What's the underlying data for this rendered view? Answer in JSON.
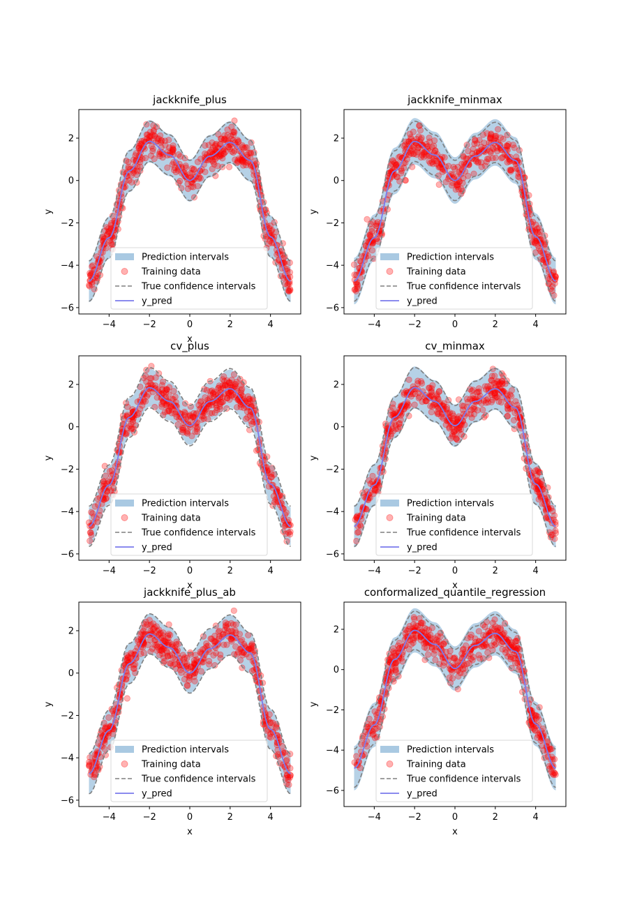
{
  "chart_data": [
    {
      "type": "scatter",
      "title": "jackknife_plus",
      "xlabel": "x",
      "ylabel": "y",
      "xlim": [
        -5.5,
        5.5
      ],
      "ylim": [
        -6.3,
        3.35
      ],
      "xticks": [
        -4,
        -2,
        0,
        2,
        4
      ],
      "yticks": [
        -6,
        -4,
        -2,
        0,
        2
      ],
      "grid": false,
      "legend_position": "lower-center",
      "legend": [
        "Prediction intervals",
        "Training data",
        "True confidence intervals",
        "y_pred"
      ],
      "series": [
        {
          "name": "Prediction intervals",
          "kind": "band",
          "half_width": 1.0,
          "x": [
            -5,
            -4,
            -3,
            -2,
            -1,
            0,
            1,
            2,
            3,
            4,
            5
          ]
        },
        {
          "name": "Training data",
          "kind": "points",
          "count": 500,
          "x_range": [
            -5,
            5
          ],
          "noise_sd": 0.4
        },
        {
          "name": "True confidence intervals",
          "kind": "dashed",
          "offset": 0.95
        },
        {
          "name": "y_pred",
          "kind": "line",
          "x": [
            -5,
            -4,
            -3,
            -2,
            -1,
            0,
            1,
            2,
            3,
            4,
            5
          ],
          "y": [
            -4.75,
            -2.7,
            0.45,
            1.85,
            1.2,
            0.0,
            1.15,
            1.8,
            0.95,
            -2.65,
            -4.75
          ]
        }
      ]
    },
    {
      "type": "scatter",
      "title": "jackknife_minmax",
      "xlabel": "",
      "ylabel": "y",
      "xlim": [
        -5.5,
        5.5
      ],
      "ylim": [
        -6.3,
        3.35
      ],
      "xticks": [
        -4,
        -2,
        0,
        2,
        4
      ],
      "yticks": [
        -6,
        -4,
        -2,
        0,
        2
      ],
      "grid": false,
      "legend_position": "lower-center",
      "legend": [
        "Prediction intervals",
        "Training data",
        "True confidence intervals",
        "y_pred"
      ],
      "series": [
        {
          "name": "Prediction intervals",
          "kind": "band",
          "half_width": 1.1,
          "x": [
            -5,
            -4,
            -3,
            -2,
            -1,
            0,
            1,
            2,
            3,
            4,
            5
          ]
        },
        {
          "name": "Training data",
          "kind": "points",
          "count": 500,
          "x_range": [
            -5,
            5
          ],
          "noise_sd": 0.4
        },
        {
          "name": "True confidence intervals",
          "kind": "dashed",
          "offset": 0.95
        },
        {
          "name": "y_pred",
          "kind": "line",
          "x": [
            -5,
            -4,
            -3,
            -2,
            -1,
            0,
            1,
            2,
            3,
            4,
            5
          ],
          "y": [
            -4.75,
            -2.7,
            0.45,
            1.85,
            1.2,
            0.0,
            1.15,
            1.8,
            0.95,
            -2.65,
            -4.75
          ]
        }
      ]
    },
    {
      "type": "scatter",
      "title": "cv_plus",
      "xlabel": "x",
      "ylabel": "y",
      "xlim": [
        -5.5,
        5.5
      ],
      "ylim": [
        -6.3,
        3.35
      ],
      "xticks": [
        -4,
        -2,
        0,
        2,
        4
      ],
      "yticks": [
        -6,
        -4,
        -2,
        0,
        2
      ],
      "grid": false,
      "legend_position": "lower-center",
      "legend": [
        "Prediction intervals",
        "Training data",
        "True confidence intervals",
        "y_pred"
      ],
      "series": [
        {
          "name": "Prediction intervals",
          "kind": "band",
          "half_width": 0.9,
          "x": [
            -5,
            -4,
            -3,
            -2,
            -1,
            0,
            1,
            2,
            3,
            4,
            5
          ]
        },
        {
          "name": "Training data",
          "kind": "points",
          "count": 500,
          "x_range": [
            -5,
            5
          ],
          "noise_sd": 0.4
        },
        {
          "name": "True confidence intervals",
          "kind": "dashed",
          "offset": 0.95
        },
        {
          "name": "y_pred",
          "kind": "line",
          "x": [
            -5,
            -4,
            -3,
            -2,
            -1,
            0,
            1,
            2,
            3,
            4,
            5
          ],
          "y": [
            -4.7,
            -2.75,
            0.45,
            1.85,
            1.2,
            0.05,
            1.2,
            1.8,
            0.9,
            -2.7,
            -4.7
          ]
        }
      ]
    },
    {
      "type": "scatter",
      "title": "cv_minmax",
      "xlabel": "x",
      "ylabel": "y",
      "xlim": [
        -5.5,
        5.5
      ],
      "ylim": [
        -6.3,
        3.35
      ],
      "xticks": [
        -4,
        -2,
        0,
        2,
        4
      ],
      "yticks": [
        -6,
        -4,
        -2,
        0,
        2
      ],
      "grid": false,
      "legend_position": "lower-center",
      "legend": [
        "Prediction intervals",
        "Training data",
        "True confidence intervals",
        "y_pred"
      ],
      "series": [
        {
          "name": "Prediction intervals",
          "kind": "band",
          "half_width": 1.0,
          "x": [
            -5,
            -4,
            -3,
            -2,
            -1,
            0,
            1,
            2,
            3,
            4,
            5
          ]
        },
        {
          "name": "Training data",
          "kind": "points",
          "count": 500,
          "x_range": [
            -5,
            5
          ],
          "noise_sd": 0.4
        },
        {
          "name": "True confidence intervals",
          "kind": "dashed",
          "offset": 0.95
        },
        {
          "name": "y_pred",
          "kind": "line",
          "x": [
            -5,
            -4,
            -3,
            -2,
            -1,
            0,
            1,
            2,
            3,
            4,
            5
          ],
          "y": [
            -4.7,
            -2.75,
            0.45,
            1.85,
            1.2,
            0.05,
            1.2,
            1.8,
            0.9,
            -2.7,
            -4.7
          ]
        }
      ]
    },
    {
      "type": "scatter",
      "title": "jackknife_plus_ab",
      "xlabel": "x",
      "ylabel": "y",
      "xlim": [
        -5.5,
        5.5
      ],
      "ylim": [
        -6.3,
        3.35
      ],
      "xticks": [
        -4,
        -2,
        0,
        2,
        4
      ],
      "yticks": [
        -6,
        -4,
        -2,
        0,
        2
      ],
      "grid": false,
      "legend_position": "lower-center",
      "legend": [
        "Prediction intervals",
        "Training data",
        "True confidence intervals",
        "y_pred"
      ],
      "series": [
        {
          "name": "Prediction intervals",
          "kind": "band",
          "half_width": 0.95,
          "x": [
            -5,
            -4,
            -3,
            -2,
            -1,
            0,
            1,
            2,
            3,
            4,
            5
          ]
        },
        {
          "name": "Training data",
          "kind": "points",
          "count": 500,
          "x_range": [
            -5,
            5
          ],
          "noise_sd": 0.4
        },
        {
          "name": "True confidence intervals",
          "kind": "dashed",
          "offset": 0.95
        },
        {
          "name": "y_pred",
          "kind": "line",
          "x": [
            -5,
            -4,
            -3,
            -2,
            -1,
            0,
            1,
            2,
            3,
            4,
            5
          ],
          "y": [
            -4.75,
            -2.7,
            0.45,
            1.85,
            1.2,
            0.0,
            1.15,
            1.8,
            0.95,
            -2.65,
            -4.75
          ]
        }
      ]
    },
    {
      "type": "scatter",
      "title": "conformalized_quantile_regression",
      "xlabel": "x",
      "ylabel": "y",
      "xlim": [
        -5.5,
        5.5
      ],
      "ylim": [
        -6.8,
        3.35
      ],
      "xticks": [
        -4,
        -2,
        0,
        2,
        4
      ],
      "yticks": [
        -6,
        -4,
        -2,
        0,
        2
      ],
      "grid": false,
      "legend_position": "lower-center",
      "legend": [
        "Prediction intervals",
        "Training data",
        "True confidence intervals",
        "y_pred"
      ],
      "series": [
        {
          "name": "Prediction intervals",
          "kind": "band",
          "half_width": 1.1,
          "x": [
            -5,
            -4,
            -3,
            -2,
            -1,
            0,
            1,
            2,
            3,
            4,
            5
          ]
        },
        {
          "name": "Training data",
          "kind": "points",
          "count": 500,
          "x_range": [
            -5,
            5
          ],
          "noise_sd": 0.4
        },
        {
          "name": "True confidence intervals",
          "kind": "dashed",
          "offset": 0.95
        },
        {
          "name": "y_pred",
          "kind": "line",
          "x": [
            -5,
            -4,
            -3,
            -2,
            -1,
            0,
            1,
            2,
            3,
            4,
            5
          ],
          "y": [
            -4.9,
            -2.75,
            0.5,
            1.95,
            1.25,
            0.05,
            1.2,
            1.8,
            0.9,
            -2.7,
            -4.9
          ]
        }
      ]
    }
  ],
  "colors": {
    "band": "#a9c9e2",
    "points": "#ff0000",
    "dashed": "#7f7f7f",
    "line": "#7a7aec",
    "axes": "#000000"
  }
}
